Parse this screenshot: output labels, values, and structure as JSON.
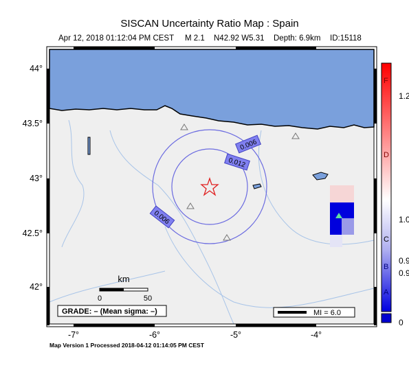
{
  "header": {
    "title": "SISCAN Uncertainty Ratio Map : Spain",
    "subtitle": {
      "date": "Apr 12, 2018 01:12:04 PM CEST",
      "magnitude": "M 2.1",
      "location": "N42.92 W5.31",
      "depth": "Depth: 6.9km",
      "id": "ID:15118"
    }
  },
  "map": {
    "lon_labels": [
      "-7°",
      "-6°",
      "-5°",
      "-4°"
    ],
    "lat_labels": [
      "44°",
      "43.5°",
      "43°",
      "42.5°",
      "42°"
    ],
    "contour_labels": [
      "0.006",
      "0.012",
      "0.006"
    ],
    "scale": {
      "unit": "km",
      "ticks": [
        "0",
        "50"
      ]
    },
    "grade": "GRADE: – (Mean sigma: –)",
    "mi_legend": "MI = 6.0"
  },
  "colorbar": {
    "labels": [
      "F",
      "1.2",
      "D",
      "1.0",
      "C",
      "0.9",
      "B",
      "0.9",
      "A",
      "0"
    ]
  },
  "footer": "Map Version 1 Processed 2018-04-12 01:14:05 PM CEST"
}
